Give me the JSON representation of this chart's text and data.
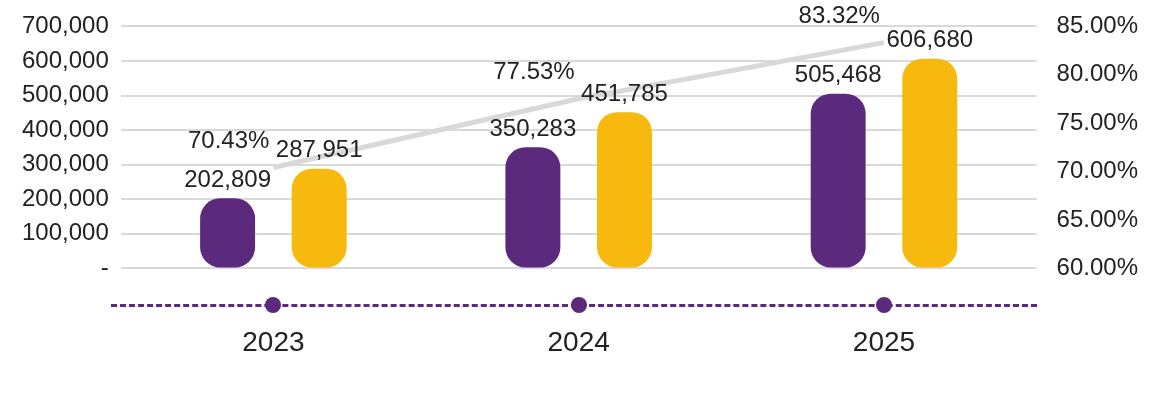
{
  "chart_data": {
    "type": "bar",
    "categories": [
      "2023",
      "2024",
      "2025"
    ],
    "series": [
      {
        "color": "#5b2a7c",
        "values": [
          202809,
          350283,
          505468
        ],
        "value_labels": [
          "202,809",
          "350,283",
          "505,468"
        ]
      },
      {
        "color": "#f7b90d",
        "values": [
          287951,
          451785,
          606680
        ],
        "value_labels": [
          "287,951",
          "451,785",
          "606,680"
        ]
      },
      {
        "type": "line",
        "axis": "y2",
        "color": "#d9d9d9",
        "values": [
          70.43,
          77.53,
          83.32
        ],
        "value_labels": [
          "70.43%",
          "77.53%",
          "83.32%"
        ]
      }
    ],
    "ylim": [
      0,
      700000
    ],
    "yticks": [
      {
        "value": 0,
        "label": "-"
      },
      {
        "value": 100000,
        "label": "100,000"
      },
      {
        "value": 200000,
        "label": "200,000"
      },
      {
        "value": 300000,
        "label": "300,000"
      },
      {
        "value": 400000,
        "label": "400,000"
      },
      {
        "value": 500000,
        "label": "500,000"
      },
      {
        "value": 600000,
        "label": "600,000"
      },
      {
        "value": 700000,
        "label": "700,000"
      }
    ],
    "y2lim": [
      60,
      85
    ],
    "y2ticks": [
      {
        "value": 60,
        "label": "60.00%"
      },
      {
        "value": 65,
        "label": "65.00%"
      },
      {
        "value": 70,
        "label": "70.00%"
      },
      {
        "value": 75,
        "label": "75.00%"
      },
      {
        "value": 80,
        "label": "80.00%"
      },
      {
        "value": 85,
        "label": "85.00%"
      }
    ],
    "grid": "y",
    "legend": false,
    "marker": "none",
    "line_style": "solid"
  }
}
